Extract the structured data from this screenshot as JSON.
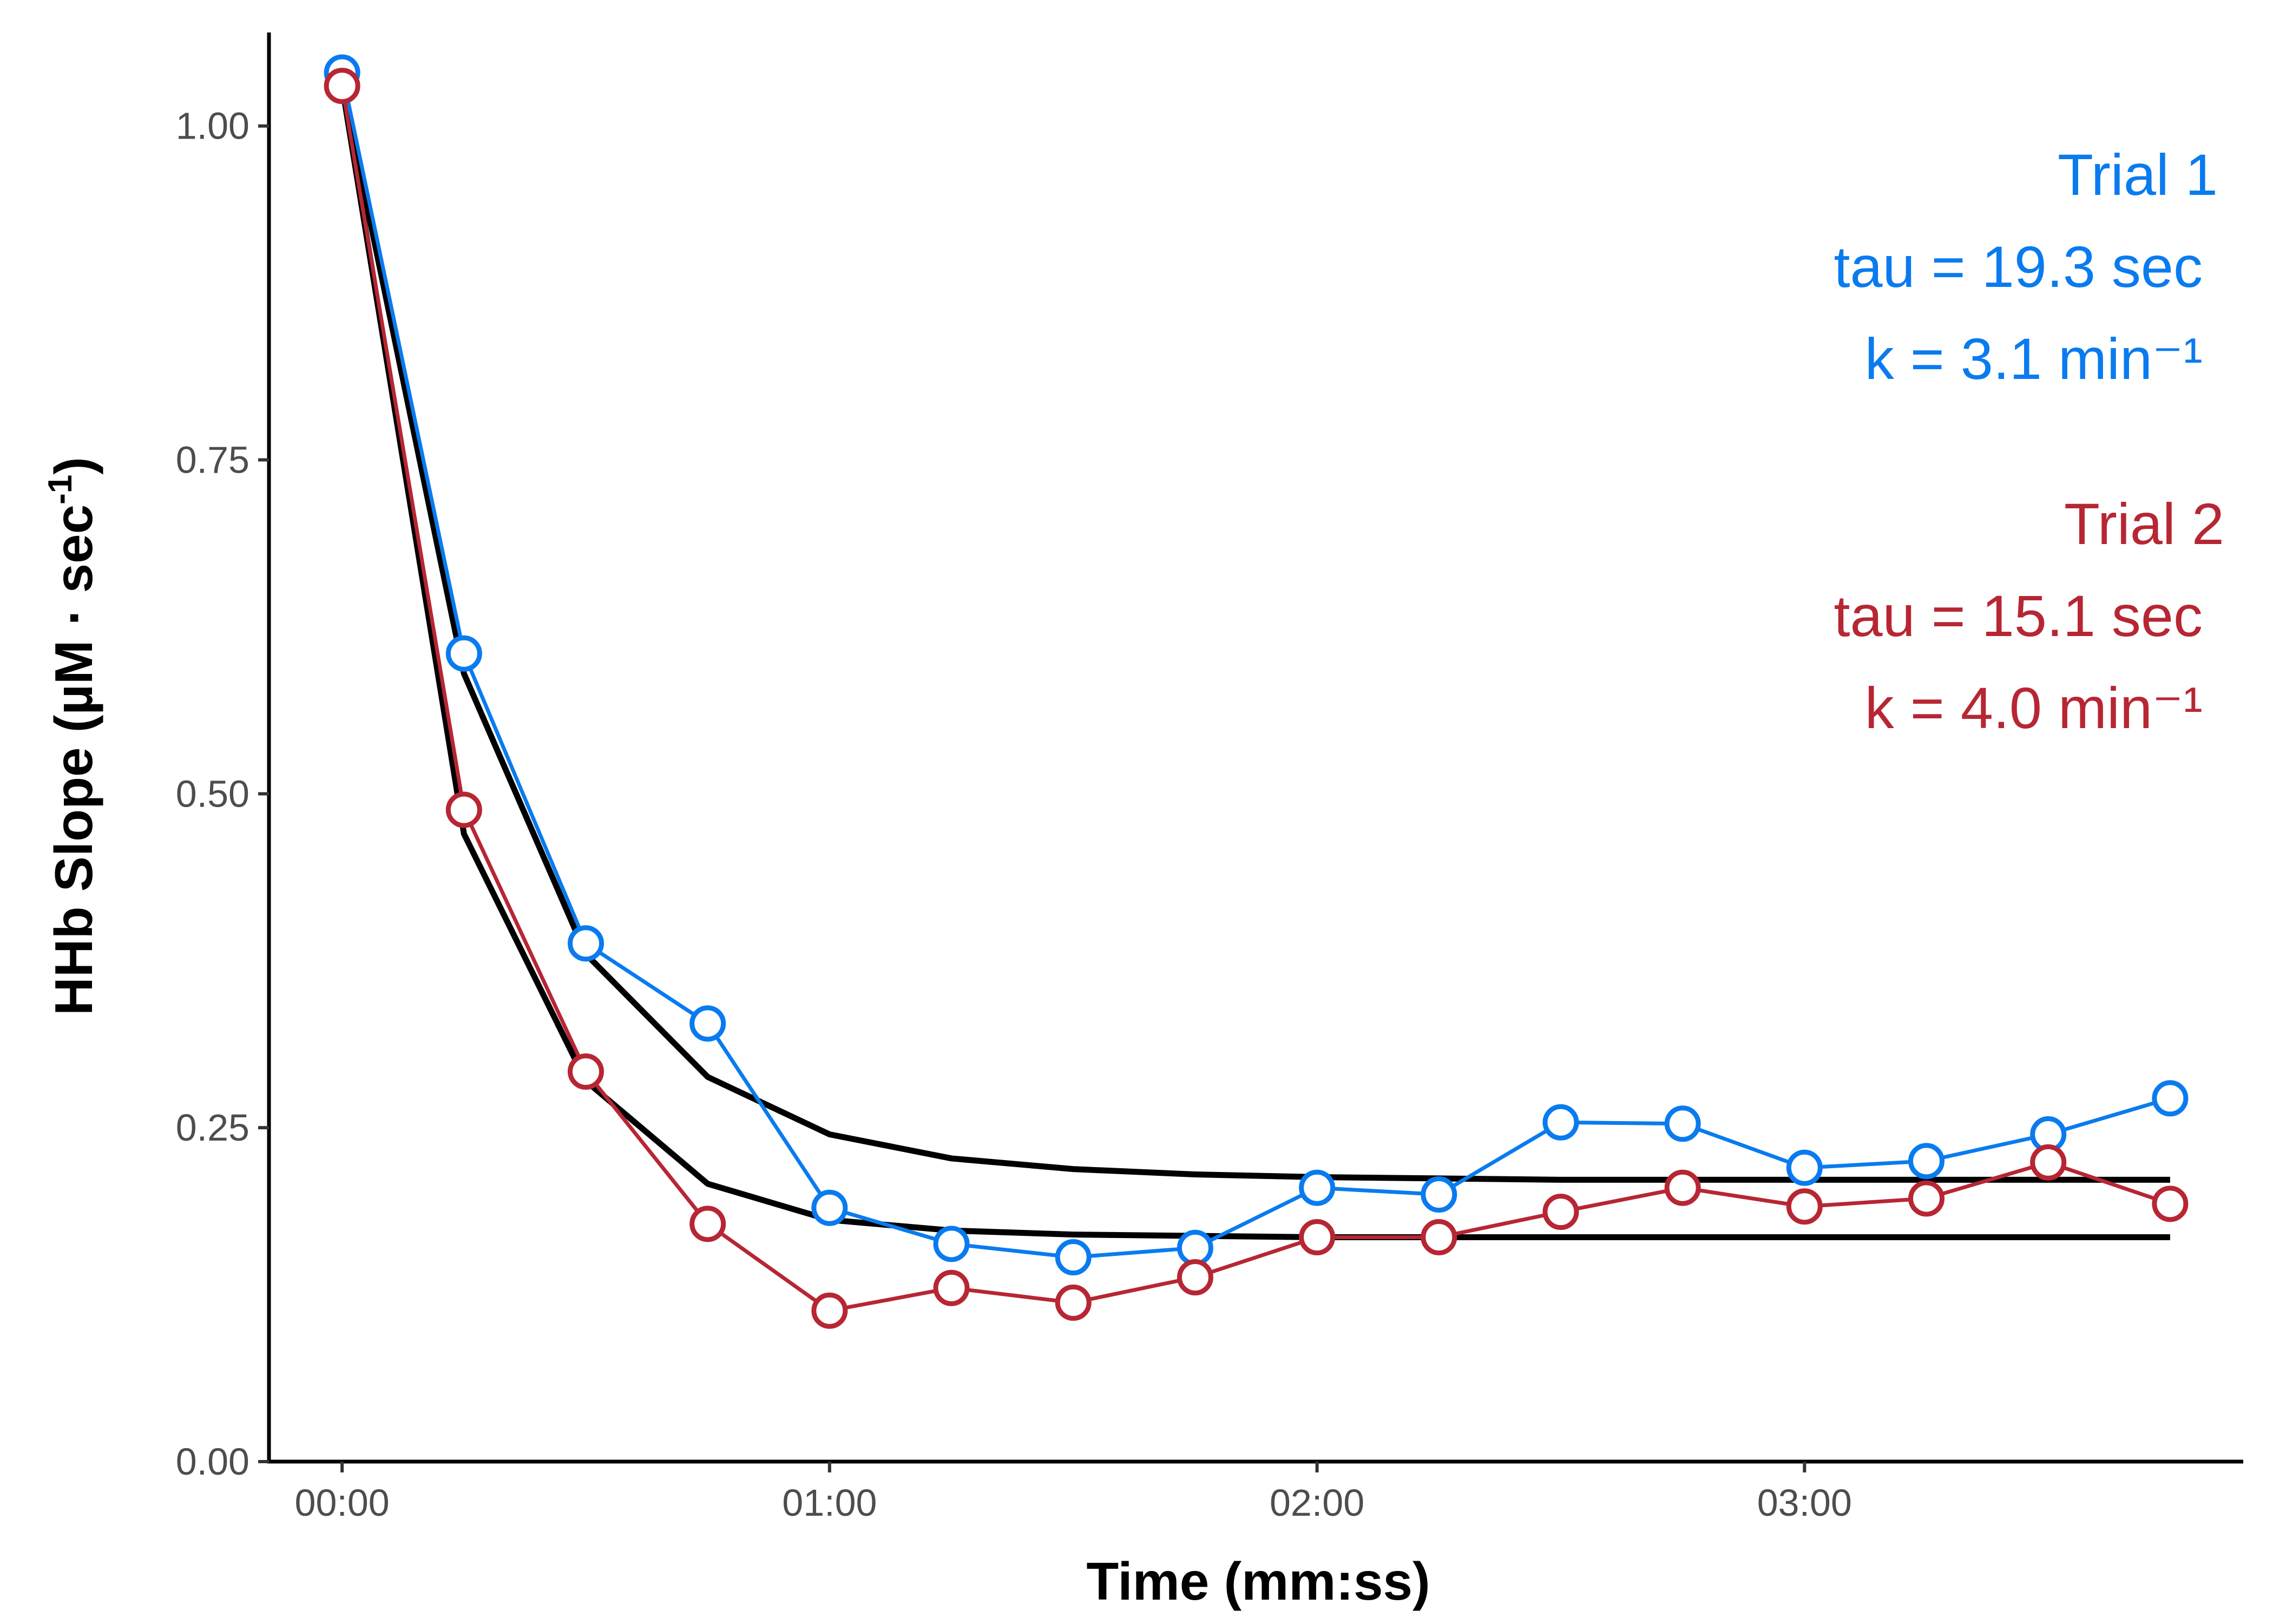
{
  "chart_data": {
    "type": "line",
    "title": "",
    "xlabel": "Time (mm:ss)",
    "ylabel": "HHb Slope (µM · sec",
    "ylabel_superscript": "-1",
    "ylabel_close": ")",
    "xlim": [
      -0.15,
      3.9
    ],
    "ylim": [
      0,
      1.07
    ],
    "x_ticks": [
      0,
      1,
      2,
      3
    ],
    "x_tick_labels": [
      "00:00",
      "01:00",
      "02:00",
      "03:00"
    ],
    "y_ticks": [
      0,
      0.25,
      0.5,
      0.75,
      1.0
    ],
    "y_tick_labels": [
      "0.00",
      "0.25",
      "0.50",
      "0.75",
      "1.00"
    ],
    "grid": false,
    "x": [
      0,
      0.25,
      0.5,
      0.75,
      1.0,
      1.25,
      1.5,
      1.75,
      2.0,
      2.25,
      2.5,
      2.75,
      3.0,
      3.25,
      3.5,
      3.75
    ],
    "series": [
      {
        "name": "Trial 1",
        "kind": "observed",
        "color": "#0a7bef",
        "values": [
          1.04,
          0.605,
          0.388,
          0.328,
          0.19,
          0.163,
          0.153,
          0.16,
          0.205,
          0.2,
          0.254,
          0.253,
          0.22,
          0.225,
          0.245,
          0.272
        ]
      },
      {
        "name": "Trial 2",
        "kind": "observed",
        "color": "#b72633",
        "values": [
          1.03,
          0.488,
          0.292,
          0.178,
          0.113,
          0.13,
          0.119,
          0.138,
          0.168,
          0.168,
          0.187,
          0.205,
          0.191,
          0.197,
          0.224,
          0.193
        ]
      },
      {
        "name": "Trial 1 fit",
        "kind": "fit",
        "color": "#000000",
        "values": [
          1.03,
          0.59,
          0.38,
          0.288,
          0.245,
          0.227,
          0.219,
          0.215,
          0.213,
          0.212,
          0.211,
          0.211,
          0.211,
          0.211,
          0.211,
          0.211
        ]
      },
      {
        "name": "Trial 2 fit",
        "kind": "fit",
        "color": "#000000",
        "values": [
          1.03,
          0.47,
          0.285,
          0.208,
          0.181,
          0.173,
          0.17,
          0.169,
          0.168,
          0.168,
          0.168,
          0.168,
          0.168,
          0.168,
          0.168,
          0.168
        ]
      }
    ],
    "annotations": [
      {
        "title": "Trial 1",
        "tau": "tau = 19.3 sec",
        "k": "k = 3.1 min⁻¹",
        "color": "#0a7bef"
      },
      {
        "title": "Trial 2",
        "tau": "tau = 15.1 sec",
        "k": "k = 4.0 min⁻¹",
        "color": "#b72633"
      }
    ]
  }
}
